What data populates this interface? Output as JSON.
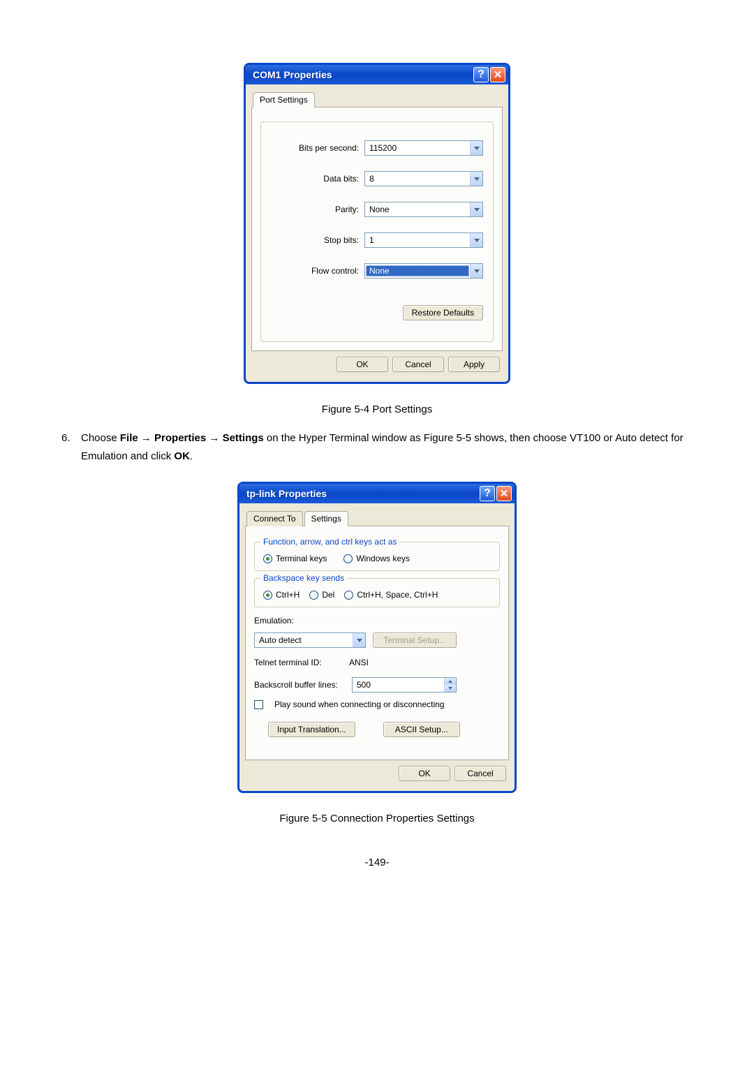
{
  "colors": {
    "titlebar_gradient_start": "#2a6de1",
    "titlebar_gradient_mid": "#0a46c8",
    "dialog_body_bg": "#ece9d8",
    "tab_panel_bg": "#fcfcfa",
    "border_gray": "#aca899",
    "select_border": "#7f9db9",
    "select_highlight_bg": "#316ac5",
    "legend_blue": "#0a46c8",
    "close_btn_bg": "#e04a1a",
    "help_btn_bg": "#1a5ad8"
  },
  "dialog1": {
    "title": "COM1 Properties",
    "tabs": [
      "Port Settings"
    ],
    "active_tab_index": 0,
    "fields": {
      "bits_per_second": {
        "label": "Bits per second:",
        "value": "115200"
      },
      "data_bits": {
        "label": "Data bits:",
        "value": "8"
      },
      "parity": {
        "label": "Parity:",
        "value": "None"
      },
      "stop_bits": {
        "label": "Stop bits:",
        "value": "1"
      },
      "flow_control": {
        "label": "Flow control:",
        "value": "None",
        "highlighted": true
      }
    },
    "restore_defaults": "Restore Defaults",
    "buttons": {
      "ok": "OK",
      "cancel": "Cancel",
      "apply": "Apply"
    }
  },
  "figure1_caption": "Figure 5-4 Port Settings",
  "instruction": {
    "number": "6.",
    "parts": [
      "Choose ",
      {
        "bold": true,
        "text": "File → Properties → Settings"
      },
      " on the Hyper Terminal window as Figure 5-5 shows, then choose VT100 or Auto detect for Emulation and click ",
      {
        "bold": true,
        "text": "OK"
      },
      "."
    ]
  },
  "dialog2": {
    "title": "tp-link Properties",
    "tabs": [
      "Connect To",
      "Settings"
    ],
    "active_tab_index": 1,
    "function_keys": {
      "legend": "Function, arrow, and ctrl keys act as",
      "options": [
        "Terminal keys",
        "Windows keys"
      ],
      "selected_index": 0
    },
    "backspace": {
      "legend": "Backspace key sends",
      "options": [
        "Ctrl+H",
        "Del",
        "Ctrl+H, Space, Ctrl+H"
      ],
      "selected_index": 0
    },
    "emulation": {
      "label": "Emulation:",
      "value": "Auto detect",
      "terminal_setup": "Terminal Setup..."
    },
    "telnet_id": {
      "label": "Telnet terminal ID:",
      "value": "ANSI"
    },
    "backscroll": {
      "label": "Backscroll buffer lines:",
      "value": "500"
    },
    "play_sound": {
      "checked": false,
      "label": "Play sound when connecting or disconnecting"
    },
    "input_translation_btn": "Input Translation...",
    "ascii_setup_btn": "ASCII Setup...",
    "buttons": {
      "ok": "OK",
      "cancel": "Cancel"
    }
  },
  "figure2_caption": "Figure 5-5 Connection Properties Settings",
  "page_number": "-149-"
}
